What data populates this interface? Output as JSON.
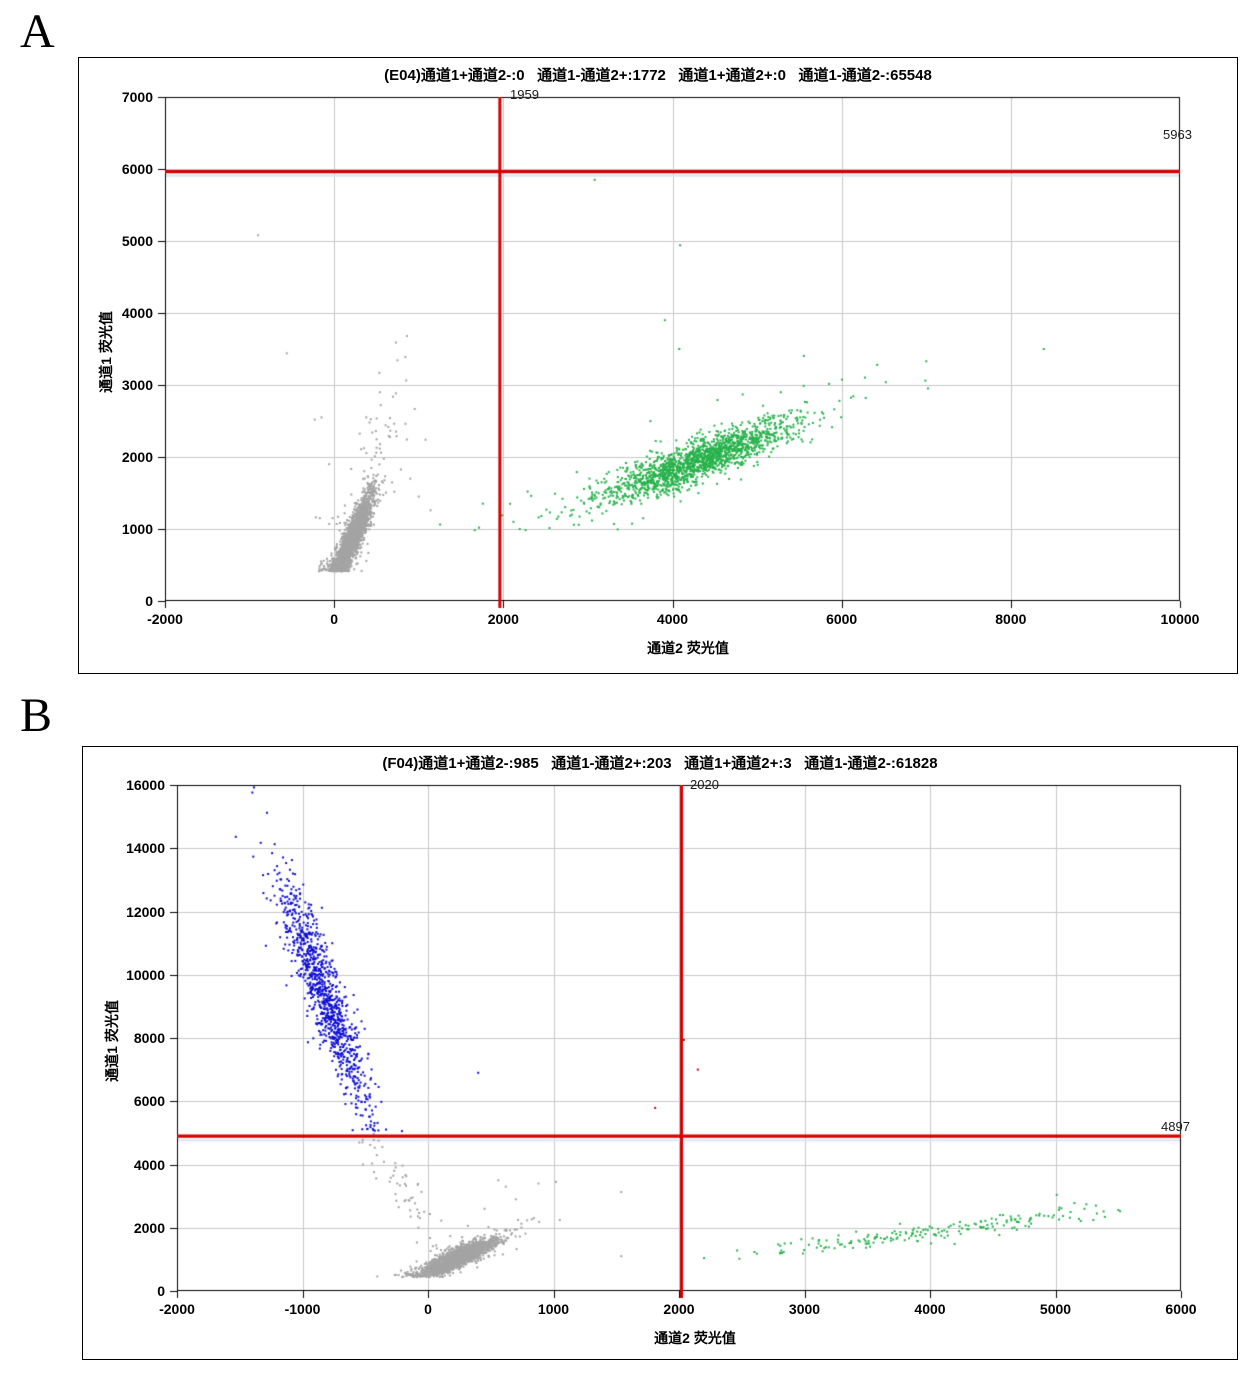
{
  "figure": {
    "background": "#ffffff"
  },
  "colors": {
    "gate_line": "#d60000",
    "gate_shadow": "#d9e6f5",
    "grid": "#c9c9c9",
    "axis": "#000000",
    "gray_points": "#a4a4a4",
    "green_points": "#27b24b",
    "blue_points": "#0d0dd4",
    "red_points": "#c80000"
  },
  "chart_data": [
    {
      "type": "scatter",
      "panel_label": "A",
      "well_id": "E04",
      "title": "(E04)通道1+通道2-:0   通道1-通道2+:1772   通道1+通道2+:0   通道1-通道2-:65548",
      "quadrant_stats": [
        {
          "label": "通道1+通道2-",
          "value": 0
        },
        {
          "label": "通道1-通道2+",
          "value": 1772
        },
        {
          "label": "通道1+通道2+",
          "value": 0
        },
        {
          "label": "通道1-通道2-",
          "value": 65548
        }
      ],
      "xlabel": "通道2 荧光值",
      "ylabel": "通道1 荧光值",
      "xlim": [
        -2000,
        10000
      ],
      "ylim": [
        0,
        7000
      ],
      "x_ticks": [
        -2000,
        0,
        2000,
        4000,
        6000,
        8000,
        10000
      ],
      "y_ticks": [
        0,
        1000,
        2000,
        3000,
        4000,
        5000,
        6000,
        7000
      ],
      "grid": true,
      "gate_x": {
        "value": 1959,
        "label": "1959"
      },
      "gate_y": {
        "value": 5963,
        "label": "5963"
      },
      "clusters": [
        {
          "name": "double-negative-main",
          "color": "#a4a4a4",
          "seed": 11,
          "count": 2200,
          "cx": 225,
          "cy": 900,
          "dx": 110,
          "dy": 300,
          "nx": 55,
          "ny": 105,
          "cross": 35,
          "tmin": -2.2,
          "tmax": 2.4,
          "haloFrac": 0.05,
          "haloScale": 2.4,
          "clampYmin": 410,
          "clampXmin": -180
        },
        {
          "name": "gray-spray",
          "color": "#a4a4a4",
          "seed": 12,
          "count": 45,
          "cx": 420,
          "cy": 1900,
          "dx": 190,
          "dy": 620,
          "nx": 160,
          "ny": 320,
          "cross": 0,
          "tmin": -1.6,
          "tmax": 2.3
        },
        {
          "name": "ch2-positive-main",
          "color": "#27b24b",
          "seed": 13,
          "count": 1772,
          "cx": 4280,
          "cy": 1940,
          "dx": 500,
          "dy": 235,
          "nx": 250,
          "ny": 130,
          "cross": 60,
          "tmin": -2.4,
          "tmax": 2.4,
          "haloFrac": 0.07,
          "haloScale": 2.0,
          "clampYmin": 980
        }
      ],
      "outliers": [
        {
          "color": "#a4a4a4",
          "points": [
            [
              -900,
              5080
            ],
            [
              -560,
              3440
            ],
            [
              730,
              3590
            ],
            [
              860,
              3680
            ],
            [
              -150,
              2550
            ],
            [
              -230,
              2520
            ],
            [
              540,
              2900
            ],
            [
              660,
              2540
            ],
            [
              450,
              2340
            ],
            [
              1080,
              2240
            ],
            [
              -60,
              1900
            ],
            [
              900,
              1700
            ],
            [
              1000,
              1450
            ],
            [
              1140,
              1260
            ],
            [
              -170,
              1150
            ],
            [
              380,
              2550
            ]
          ]
        },
        {
          "color": "#27b24b",
          "points": [
            [
              3080,
              5850
            ],
            [
              4090,
              4940
            ],
            [
              3910,
              3900
            ],
            [
              4080,
              3500
            ],
            [
              6420,
              3280
            ],
            [
              6990,
              3060
            ],
            [
              8390,
              3500
            ],
            [
              5280,
              2900
            ],
            [
              5590,
              2760
            ],
            [
              2080,
              1350
            ],
            [
              2120,
              1100
            ],
            [
              2550,
              1230
            ],
            [
              2700,
              1420
            ],
            [
              2450,
              1180
            ]
          ]
        }
      ]
    },
    {
      "type": "scatter",
      "panel_label": "B",
      "well_id": "F04",
      "title": "(F04)通道1+通道2-:985   通道1-通道2+:203   通道1+通道2+:3   通道1-通道2-:61828",
      "quadrant_stats": [
        {
          "label": "通道1+通道2-",
          "value": 985
        },
        {
          "label": "通道1-通道2+",
          "value": 203
        },
        {
          "label": "通道1+通道2+",
          "value": 3
        },
        {
          "label": "通道1-通道2-",
          "value": 61828
        }
      ],
      "xlabel": "通道2 荧光值",
      "ylabel": "通道1 荧光值",
      "xlim": [
        -2000,
        6000
      ],
      "ylim": [
        0,
        16000
      ],
      "x_ticks": [
        -2000,
        -1000,
        0,
        1000,
        2000,
        3000,
        4000,
        5000,
        6000
      ],
      "y_ticks": [
        0,
        2000,
        4000,
        6000,
        8000,
        10000,
        12000,
        14000,
        16000
      ],
      "grid": true,
      "gate_x": {
        "value": 2020,
        "label": "2020"
      },
      "gate_y": {
        "value": 4897,
        "label": "4897"
      },
      "clusters": [
        {
          "name": "double-negative-main",
          "color": "#a4a4a4",
          "seed": 21,
          "count": 2000,
          "cx": 245,
          "cy": 1060,
          "dx": 130,
          "dy": 280,
          "nx": 80,
          "ny": 110,
          "cross": 50,
          "tmin": -1.8,
          "tmax": 2.1,
          "haloFrac": 0.05,
          "haloScale": 2.0,
          "clampYmin": 430
        },
        {
          "name": "gray-arc-trail",
          "color": "#a4a4a4",
          "seed": 22,
          "count": 55,
          "cx": -200,
          "cy": 3300,
          "dx": -160,
          "dy": 900,
          "nx": 70,
          "ny": 260,
          "cross": 0,
          "tmin": -1.5,
          "tmax": 1.6
        },
        {
          "name": "ch1-positive-main",
          "color": "#0d0dd4",
          "seed": 23,
          "count": 985,
          "cx": -830,
          "cy": 9400,
          "dx": 165,
          "dy": -1850,
          "nx": 85,
          "ny": 520,
          "cross": -260,
          "tmin": -1.7,
          "tmax": 2.3,
          "haloFrac": 0.03,
          "haloScale": 1.7,
          "clampYmin": 5050,
          "clampXmax": 60
        },
        {
          "name": "ch2-positive-trail",
          "color": "#27b24b",
          "seed": 24,
          "count": 190,
          "cx": 3950,
          "cy": 1830,
          "dx": 620,
          "dy": 310,
          "nx": 160,
          "ny": 110,
          "cross": 0,
          "tmin": -2.2,
          "tmax": 2.2,
          "clampYmin": 1000
        }
      ],
      "outliers": [
        {
          "color": "#a4a4a4",
          "points": [
            [
              880,
              3400
            ],
            [
              1540,
              3130
            ],
            [
              1540,
              1100
            ],
            [
              700,
              2900
            ],
            [
              560,
              3500
            ],
            [
              620,
              3300
            ],
            [
              450,
              2600
            ],
            [
              1020,
              3450
            ],
            [
              -520,
              4780
            ],
            [
              -460,
              4620
            ]
          ]
        },
        {
          "color": "#0d0dd4",
          "points": [
            [
              400,
              6900
            ]
          ]
        },
        {
          "color": "#27b24b",
          "points": [
            [
              5010,
              3040
            ],
            [
              5150,
              2780
            ],
            [
              5230,
              2600
            ],
            [
              5330,
              2450
            ],
            [
              2200,
              1040
            ],
            [
              2620,
              1180
            ]
          ]
        },
        {
          "color": "#c80000",
          "points": [
            [
              2040,
              7940
            ],
            [
              2150,
              7000
            ],
            [
              1810,
              5790
            ]
          ]
        }
      ]
    }
  ]
}
